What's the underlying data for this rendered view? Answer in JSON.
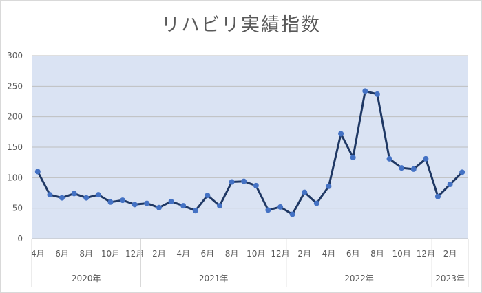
{
  "chart_data": {
    "type": "line",
    "title": "リハビリ実績指数",
    "xlabel": "",
    "ylabel": "",
    "ylim": [
      0,
      300
    ],
    "yticks": [
      0,
      50,
      100,
      150,
      200,
      250,
      300
    ],
    "grid": true,
    "legend": "none",
    "colors": {
      "plot_background": "#dae3f3",
      "line": "#1f3864",
      "marker": "#4472c4",
      "gridline": "#bfbfbf",
      "text": "#595959"
    },
    "categories": [
      "4月",
      "5月",
      "6月",
      "7月",
      "8月",
      "9月",
      "10月",
      "11月",
      "12月",
      "1月",
      "2月",
      "3月",
      "4月",
      "5月",
      "6月",
      "7月",
      "8月",
      "9月",
      "10月",
      "11月",
      "12月",
      "1月",
      "2月",
      "3月",
      "4月",
      "5月",
      "6月",
      "7月",
      "8月",
      "9月",
      "10月",
      "11月",
      "12月",
      "1月",
      "2月",
      "3月"
    ],
    "x_tick_labels": [
      "4月",
      "",
      "6月",
      "",
      "8月",
      "",
      "10月",
      "",
      "12月",
      "",
      "2月",
      "",
      "4月",
      "",
      "6月",
      "",
      "8月",
      "",
      "10月",
      "",
      "12月",
      "",
      "2月",
      "",
      "4月",
      "",
      "6月",
      "",
      "8月",
      "",
      "10月",
      "",
      "12月",
      "",
      "2月",
      ""
    ],
    "year_groups": [
      {
        "label": "2020年",
        "start": 0,
        "count": 9
      },
      {
        "label": "2021年",
        "start": 9,
        "count": 12
      },
      {
        "label": "2022年",
        "start": 21,
        "count": 12
      },
      {
        "label": "2023年",
        "start": 33,
        "count": 3
      }
    ],
    "series": [
      {
        "values": [
          110,
          72,
          67,
          74,
          67,
          72,
          60,
          63,
          56,
          58,
          51,
          61,
          54,
          46,
          71,
          54,
          93,
          94,
          87,
          47,
          52,
          40,
          76,
          58,
          86,
          172,
          133,
          242,
          237,
          131,
          116,
          114,
          131,
          69,
          89,
          109
        ]
      }
    ]
  }
}
